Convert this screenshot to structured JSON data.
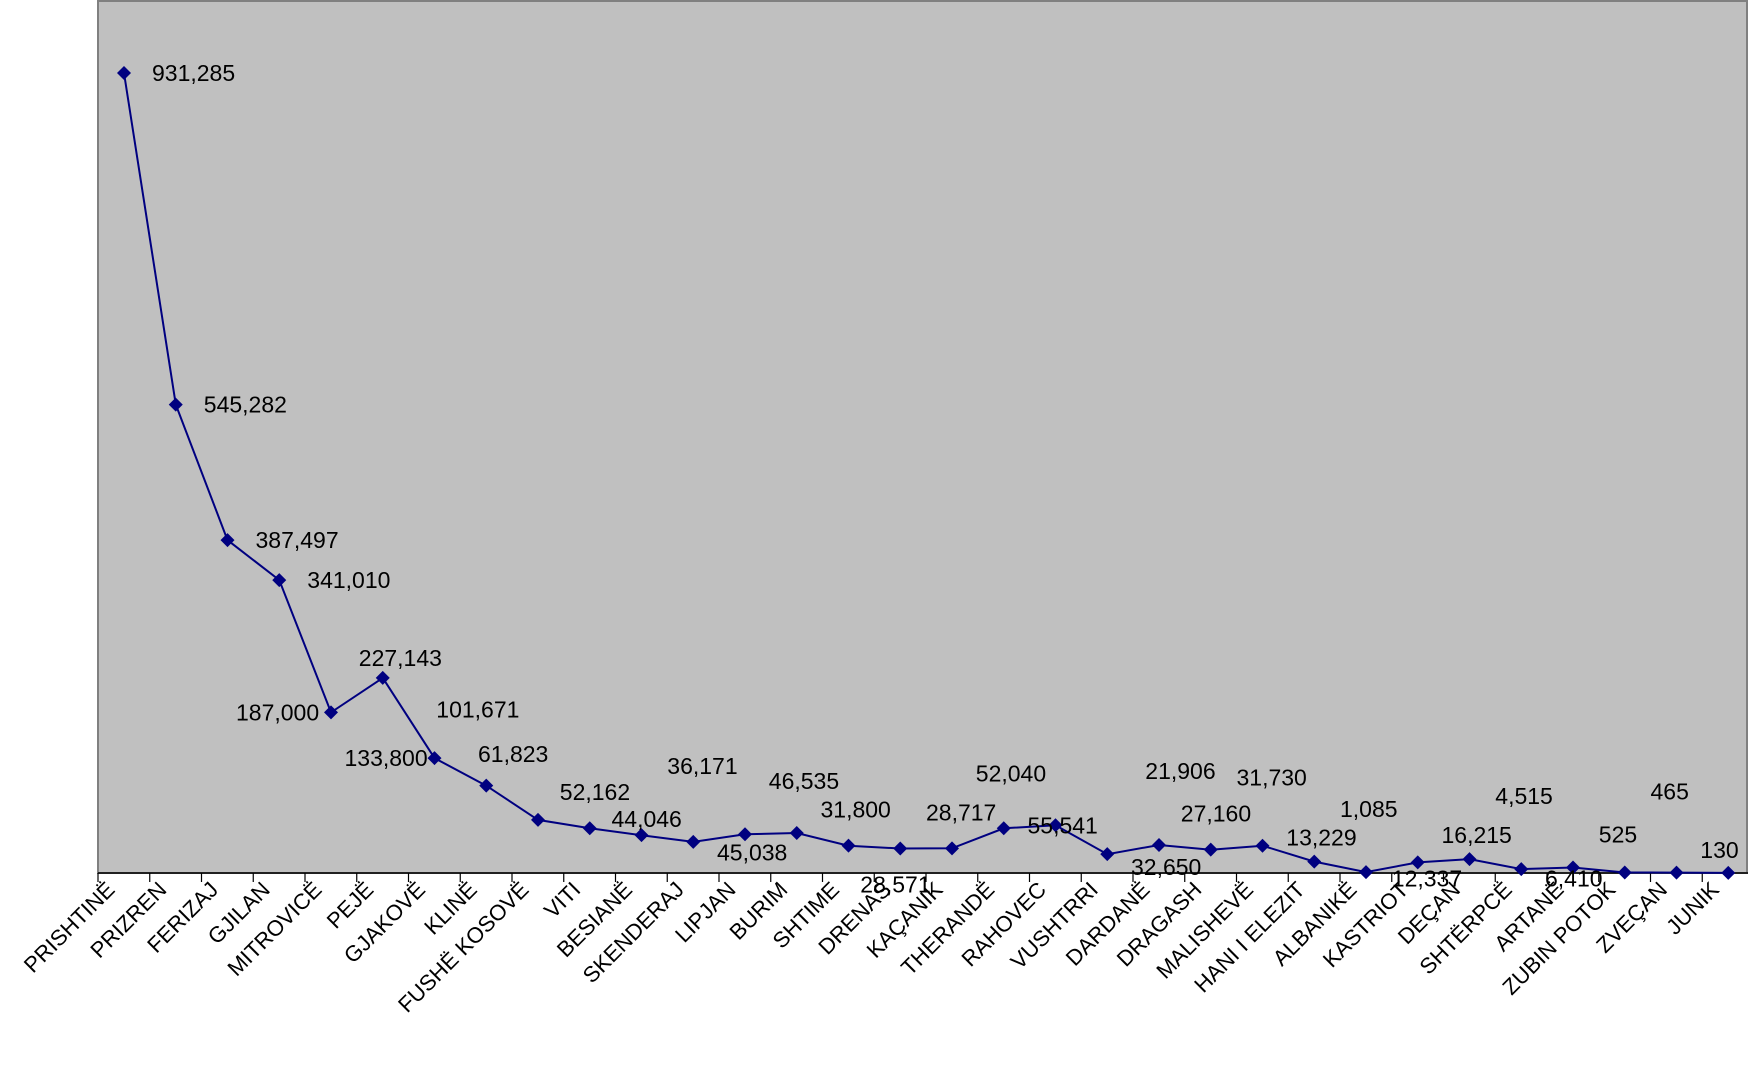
{
  "chart_data": {
    "type": "line",
    "title": "",
    "xlabel": "",
    "ylabel": "",
    "ylim": [
      0,
      1000000
    ],
    "grid": false,
    "legend": "none",
    "categories": [
      "PRISHTINË",
      "PRIZREN",
      "FERIZAJ",
      "GJILAN",
      "MITROVICË",
      "PEJË",
      "GJAKOVË",
      "KLINË",
      "FUSHË KOSOVË",
      "VITI",
      "BESIANË",
      "SKENDERAJ",
      "LIPJAN",
      "BURIM",
      "SHTIME",
      "DRENAS",
      "KAÇANIK",
      "THERANDË",
      "RAHOVEC",
      "VUSHTRRI",
      "DARDANË",
      "DRAGASH",
      "MALISHEVË",
      "HANI I ELEZIT",
      "ALBANIKË",
      "KASTRIOT",
      "DEÇAN",
      "SHTËRPCË",
      "ARTANË",
      "ZUBIN POTOK",
      "ZVEÇAN",
      "JUNIK"
    ],
    "series": [
      {
        "values": [
          931285,
          545282,
          387497,
          341010,
          187000,
          227143,
          133800,
          101671,
          61823,
          52162,
          44046,
          36171,
          45038,
          46535,
          31800,
          28571,
          28717,
          52040,
          55541,
          21906,
          32650,
          27160,
          31730,
          13229,
          1085,
          12337,
          16215,
          4515,
          6410,
          525,
          465,
          130
        ],
        "data_labels": [
          "931,285",
          "545,282",
          "387,497",
          "341,010",
          "187,000",
          "227,143",
          "133,800",
          "101,671",
          "61,823",
          "52,162",
          "44,046",
          "36,171",
          "45,038",
          "46,535",
          "31,800",
          "28,571",
          "28,717",
          "52,040",
          "55,541",
          "21,906",
          "32,650",
          "27,160",
          "31,730",
          "13,229",
          "1,085",
          "12,337",
          "16,215",
          "4,515",
          "6,410",
          "525",
          "465",
          "130"
        ]
      }
    ],
    "colors": {
      "plot_background": "#C0C0C0",
      "line": "#000080",
      "marker": "#000080",
      "frame": "#808080"
    }
  }
}
